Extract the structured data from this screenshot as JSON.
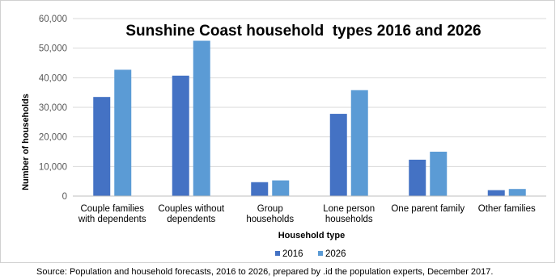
{
  "chart_data": {
    "type": "bar",
    "title": "Sunshine Coast household  types 2016 and 2026",
    "xlabel": "Household type",
    "ylabel": "Number of households",
    "ylim": [
      0,
      60000
    ],
    "yticks": [
      "0",
      "10,000",
      "20,000",
      "30,000",
      "40,000",
      "50,000",
      "60,000"
    ],
    "ytick_values": [
      0,
      10000,
      20000,
      30000,
      40000,
      50000,
      60000
    ],
    "grid": true,
    "legend_position": "bottom-right",
    "categories": [
      [
        "Couple families",
        "with dependents"
      ],
      [
        "Couples without",
        "dependents"
      ],
      [
        "Group",
        "households"
      ],
      [
        "Lone person",
        "households"
      ],
      [
        "One parent family"
      ],
      [
        "Other families"
      ]
    ],
    "series": [
      {
        "name": "2016",
        "color": "#4472c4",
        "values": [
          33500,
          40700,
          4700,
          27800,
          12300,
          2000
        ]
      },
      {
        "name": "2026",
        "color": "#5b9bd5",
        "values": [
          42700,
          52500,
          5300,
          35800,
          15000,
          2400
        ]
      }
    ]
  },
  "source": "Source: Population and household forecasts, 2016 to 2026, prepared by .id the population experts, December 2017."
}
